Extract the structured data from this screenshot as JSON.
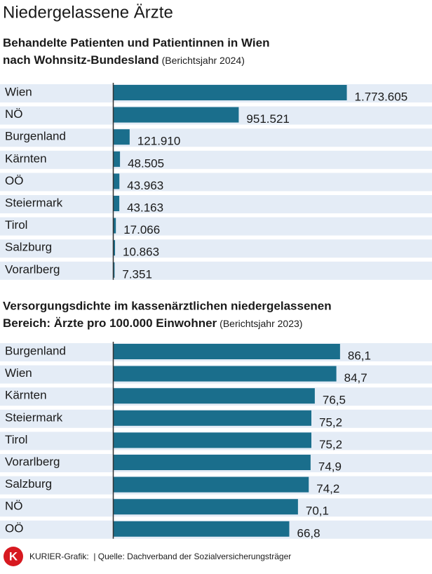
{
  "header": {
    "title": "Niedergelassene Ärzte"
  },
  "chart_data": [
    {
      "type": "bar",
      "orientation": "horizontal",
      "title_lines": [
        "Behandelte Patienten und Patientinnen in Wien",
        "nach Wohnsitz-Bundesland"
      ],
      "subtitle": "(Berichtsjahr 2024)",
      "categories": [
        "Wien",
        "NÖ",
        "Burgenland",
        "Kärnten",
        "OÖ",
        "Steiermark",
        "Tirol",
        "Salzburg",
        "Vorarlberg"
      ],
      "values": [
        1773605,
        951521,
        121910,
        48505,
        43963,
        43163,
        17066,
        10863,
        7351
      ],
      "value_labels": [
        "1.773.605",
        "951.521",
        "121.910",
        "48.505",
        "43.963",
        "43.163",
        "17.066",
        "10.863",
        "7.351"
      ],
      "xlim": [
        0,
        2000000
      ],
      "color": "#1a6e8c"
    },
    {
      "type": "bar",
      "orientation": "horizontal",
      "title_lines": [
        "Versorgungsdichte im kassenärztlichen niedergelassenen",
        "Bereich: Ärzte pro 100.000 Einwohner"
      ],
      "subtitle": "(Berichtsjahr 2023)",
      "categories": [
        "Burgenland",
        "Wien",
        "Kärnten",
        "Steiermark",
        "Tirol",
        "Vorarlberg",
        "Salzburg",
        "NÖ",
        "OÖ"
      ],
      "values": [
        86.1,
        84.7,
        76.5,
        75.2,
        75.2,
        74.9,
        74.2,
        70.1,
        66.8
      ],
      "value_labels": [
        "86,1",
        "84,7",
        "76,5",
        "75,2",
        "75,2",
        "74,9",
        "74,2",
        "70,1",
        "66,8"
      ],
      "xlim": [
        0,
        100
      ],
      "color": "#1a6e8c"
    }
  ],
  "footer": {
    "logo": "K",
    "source": "KURIER-Grafik:  | Quelle: Dachverband der Sozialversicherungsträger"
  }
}
